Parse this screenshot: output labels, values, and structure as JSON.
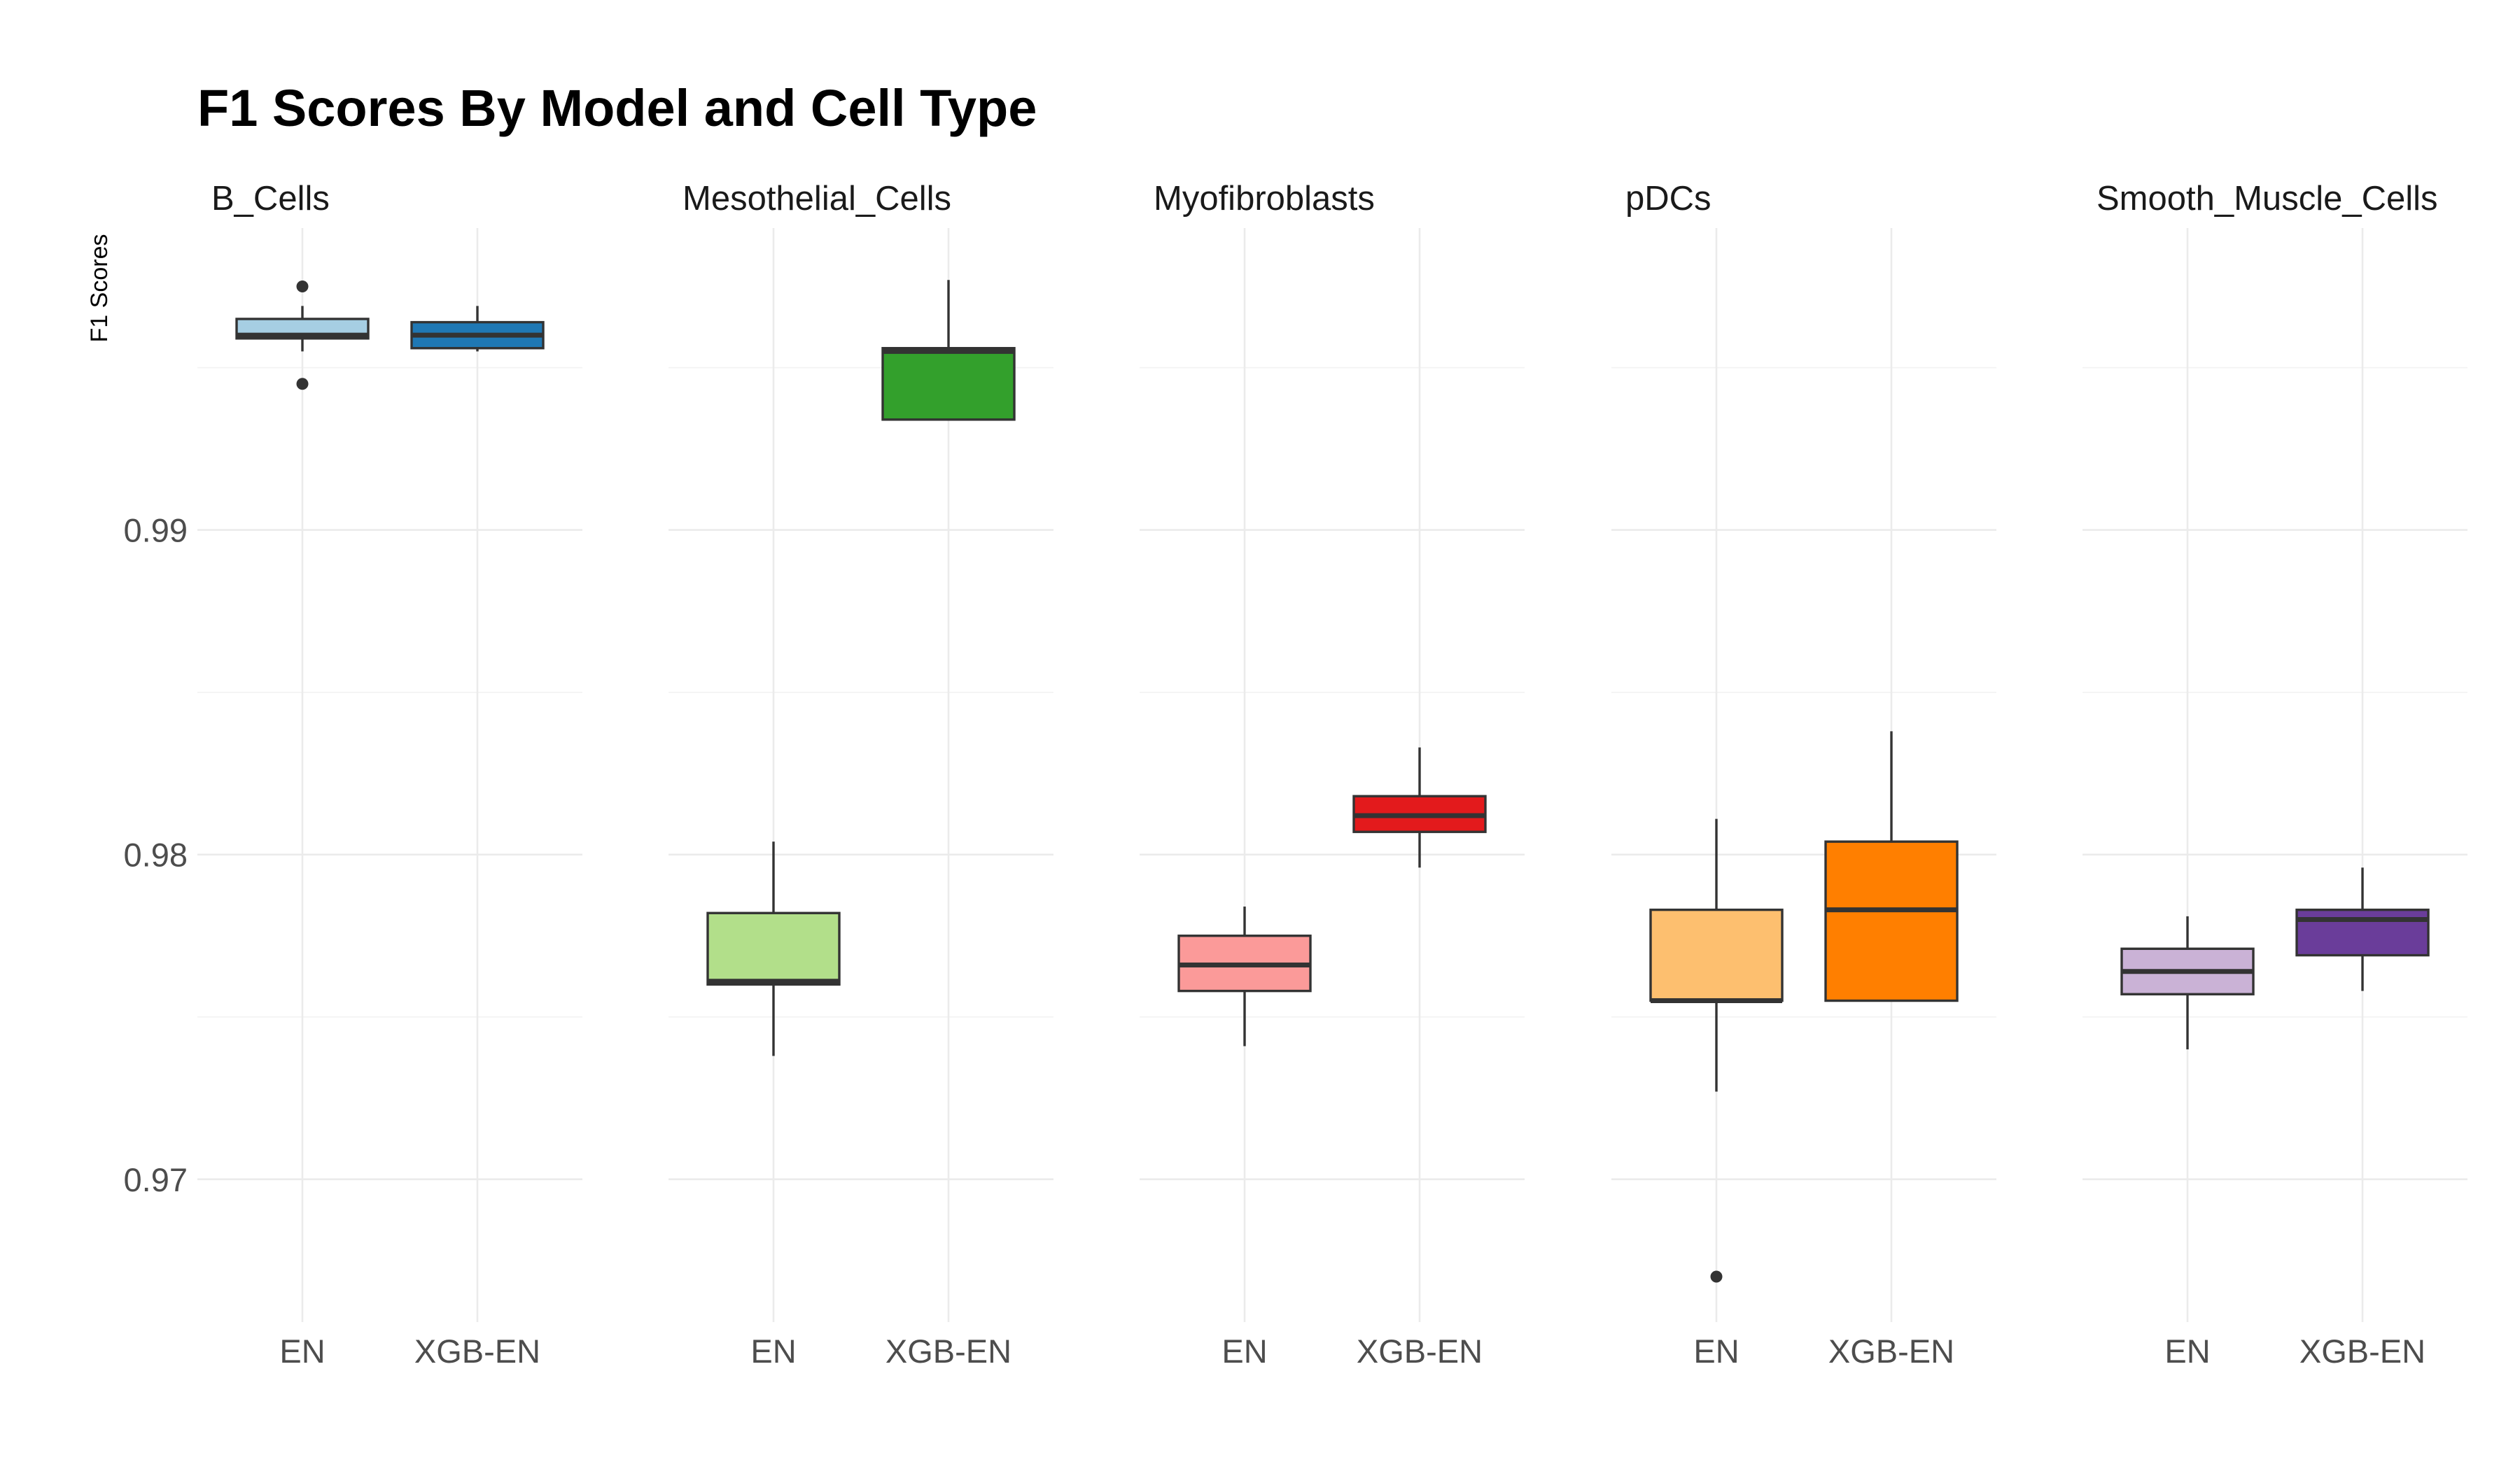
{
  "chart_data": {
    "type": "boxplot",
    "title": "F1 Scores By Model and Cell Type",
    "xlabel": "",
    "ylabel": "F1 Scores",
    "ylim": [
      0.9656,
      0.9993
    ],
    "yticks": [
      0.97,
      0.98,
      0.99
    ],
    "ytick_labels": [
      "0.97",
      "0.98",
      "0.99"
    ],
    "grid": true,
    "legend": "none",
    "categories": [
      "EN",
      "XGB-EN"
    ],
    "facets": [
      {
        "name": "B_Cells",
        "boxes": [
          {
            "category": "EN",
            "color": "#a6cee3",
            "whisker_low": 0.9955,
            "q1": 0.9959,
            "median": 0.996,
            "q3": 0.9965,
            "whisker_high": 0.9969,
            "outliers": [
              0.9975,
              0.9945
            ]
          },
          {
            "category": "XGB-EN",
            "color": "#1f78b4",
            "whisker_low": 0.9955,
            "q1": 0.9956,
            "median": 0.996,
            "q3": 0.9964,
            "whisker_high": 0.9969,
            "outliers": []
          }
        ]
      },
      {
        "name": "Mesothelial_Cells",
        "boxes": [
          {
            "category": "EN",
            "color": "#b2df8a",
            "whisker_low": 0.9738,
            "q1": 0.976,
            "median": 0.9761,
            "q3": 0.9782,
            "whisker_high": 0.9804,
            "outliers": []
          },
          {
            "category": "XGB-EN",
            "color": "#33a02c",
            "whisker_low": 0.9934,
            "q1": 0.9934,
            "median": 0.9955,
            "q3": 0.9956,
            "whisker_high": 0.9977,
            "outliers": []
          }
        ]
      },
      {
        "name": "Myofibroblasts",
        "boxes": [
          {
            "category": "EN",
            "color": "#fb9a99",
            "whisker_low": 0.9741,
            "q1": 0.9758,
            "median": 0.9766,
            "q3": 0.9775,
            "whisker_high": 0.9784,
            "outliers": []
          },
          {
            "category": "XGB-EN",
            "color": "#e31a1c",
            "whisker_low": 0.9796,
            "q1": 0.9807,
            "median": 0.9812,
            "q3": 0.9818,
            "whisker_high": 0.9833,
            "outliers": []
          }
        ]
      },
      {
        "name": "pDCs",
        "boxes": [
          {
            "category": "EN",
            "color": "#fdbf6f",
            "whisker_low": 0.9727,
            "q1": 0.9755,
            "median": 0.9755,
            "q3": 0.9783,
            "whisker_high": 0.9811,
            "outliers": [
              0.967
            ]
          },
          {
            "category": "XGB-EN",
            "color": "#ff7f00",
            "whisker_low": 0.9755,
            "q1": 0.9755,
            "median": 0.9783,
            "q3": 0.9804,
            "whisker_high": 0.9838,
            "outliers": []
          }
        ]
      },
      {
        "name": "Smooth_Muscle_Cells",
        "boxes": [
          {
            "category": "EN",
            "color": "#cab2d6",
            "whisker_low": 0.974,
            "q1": 0.9757,
            "median": 0.9764,
            "q3": 0.9771,
            "whisker_high": 0.9781,
            "outliers": []
          },
          {
            "category": "XGB-EN",
            "color": "#6a3d9a",
            "whisker_low": 0.9758,
            "q1": 0.9769,
            "median": 0.978,
            "q3": 0.9783,
            "whisker_high": 0.9796,
            "outliers": []
          }
        ]
      }
    ]
  }
}
